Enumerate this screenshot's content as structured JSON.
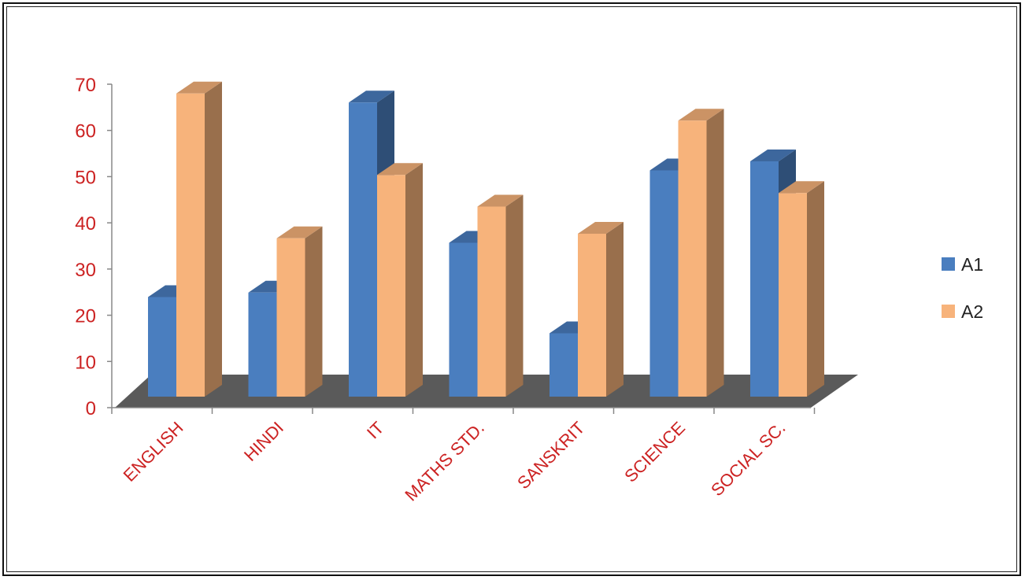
{
  "chart_data": {
    "type": "bar",
    "title": "",
    "xlabel": "",
    "ylabel": "",
    "categories": [
      "ENGLISH",
      "HINDI",
      "IT",
      "MATHS STD.",
      "SANSKRIT",
      "SCIENCE",
      "SOCIAL SC."
    ],
    "series": [
      {
        "name": "A1",
        "values": [
          22,
          23,
          65,
          34,
          14,
          50,
          52
        ]
      },
      {
        "name": "A2",
        "values": [
          67,
          35,
          49,
          42,
          36,
          61,
          45
        ]
      }
    ],
    "ylim": [
      0,
      70
    ],
    "yticks": [
      0,
      10,
      20,
      30,
      40,
      50,
      60,
      70
    ],
    "grid": false,
    "legend_position": "right",
    "three_d": true
  },
  "colors": {
    "A1": "#4a7ebf",
    "A2": "#f7b37b",
    "floor": "#5a5a5a",
    "tick_label": "#cc2222"
  }
}
